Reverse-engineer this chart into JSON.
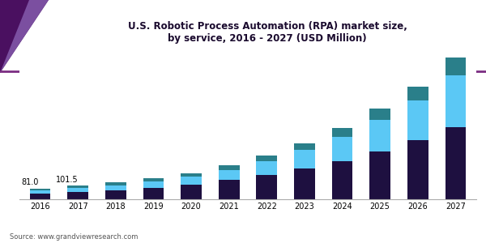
{
  "title": "U.S. Robotic Process Automation (RPA) market size,\nby service, 2016 - 2027 (USD Million)",
  "years": [
    2016,
    2017,
    2018,
    2019,
    2020,
    2021,
    2022,
    2023,
    2024,
    2025,
    2026,
    2027
  ],
  "consulting": [
    42,
    55,
    68,
    88,
    112,
    148,
    185,
    230,
    285,
    360,
    445,
    545
  ],
  "implementation": [
    24,
    30,
    38,
    46,
    58,
    75,
    105,
    140,
    185,
    240,
    300,
    390
  ],
  "training": [
    15,
    16.5,
    20,
    24,
    28,
    33,
    42,
    52,
    65,
    83,
    105,
    135
  ],
  "annotations": {
    "2016": "81.0",
    "2017": "101.5"
  },
  "colors": {
    "consulting": "#1e1040",
    "implementation": "#5bc8f5",
    "training": "#2a7f8a"
  },
  "source": "Source: www.grandviewresearch.com",
  "bar_width": 0.55,
  "header_color": "#f0ecf8",
  "header_line_color": "#7b2d82",
  "triangle_color1": "#4a1060",
  "triangle_color2": "#7b4fa0"
}
